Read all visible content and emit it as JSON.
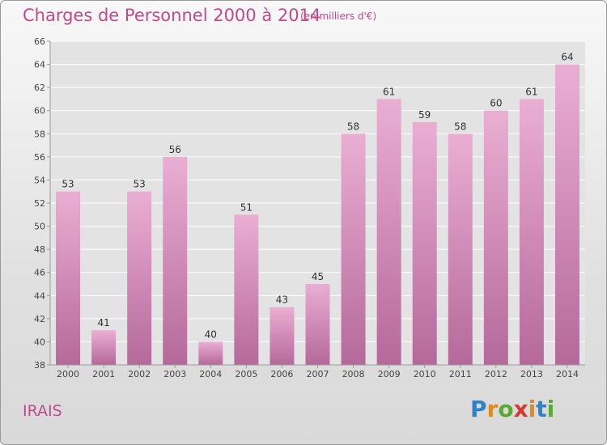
{
  "header": {
    "title": "Charges de Personnel 2000 à 2014",
    "unit_note": "(en milliers d'€)"
  },
  "footer": {
    "commune": "IRAIS",
    "logo_text": "Proxiti"
  },
  "colors": {
    "title": "#c04a8c",
    "bar_top": "#eaaed3",
    "bar_bottom": "#b5699b",
    "grid": "#ffffff"
  },
  "chart_data": {
    "type": "bar",
    "categories": [
      "2000",
      "2001",
      "2002",
      "2003",
      "2004",
      "2005",
      "2006",
      "2007",
      "2008",
      "2009",
      "2010",
      "2011",
      "2012",
      "2013",
      "2014"
    ],
    "values": [
      53,
      41,
      53,
      56,
      40,
      51,
      43,
      45,
      58,
      61,
      59,
      58,
      60,
      61,
      64
    ],
    "ylim": [
      38,
      66
    ],
    "yticks": [
      38,
      40,
      42,
      44,
      46,
      48,
      50,
      52,
      54,
      56,
      58,
      60,
      62,
      64,
      66
    ],
    "grid": true,
    "data_labels": true
  }
}
